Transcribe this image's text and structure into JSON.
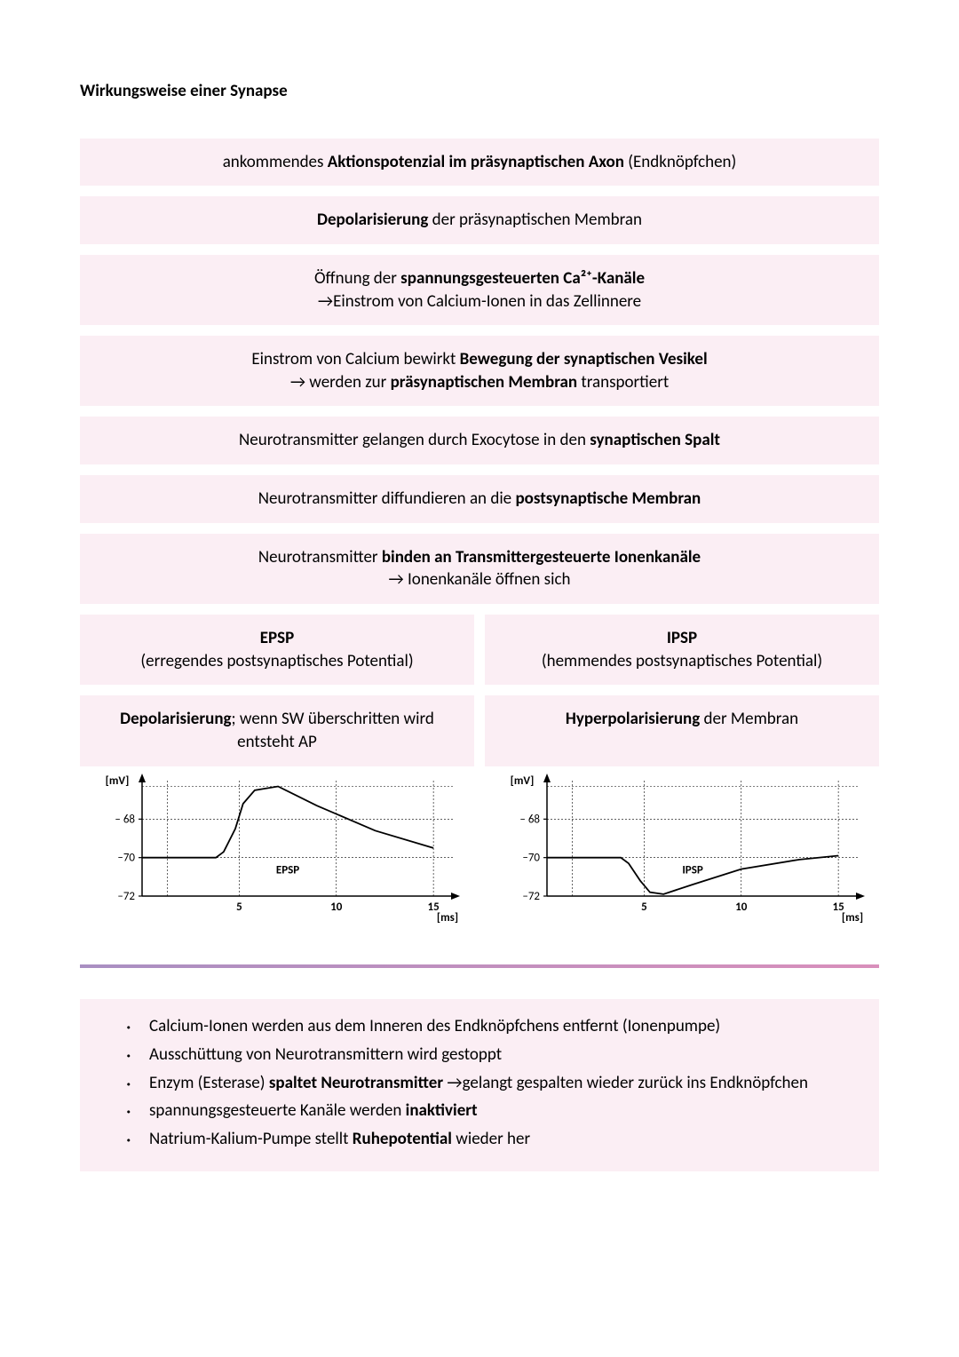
{
  "title": "Wirkungsweise einer Synapse",
  "boxes": {
    "b1_pre": "ankommendes ",
    "b1_bold": "Aktionspotenzial im präsynaptischen Axon",
    "b1_post": " (Endknöpfchen)",
    "b2_bold": "Depolarisierung",
    "b2_post": " der präsynaptischen Membran",
    "b3_l1_pre": "Öffnung der ",
    "b3_l1_bold": "spannungsgesteuerten Ca²⁺-Kanäle",
    "b3_l2": "→Einstrom von Calcium-Ionen in das Zellinnere",
    "b4_l1_pre": "Einstrom von Calcium bewirkt ",
    "b4_l1_bold": "Bewegung der synaptischen Vesikel",
    "b4_l2_pre": "→ werden zur ",
    "b4_l2_bold": "präsynaptischen Membran",
    "b4_l2_post": " transportiert",
    "b5_pre": "Neurotransmitter gelangen durch Exocytose in den ",
    "b5_bold": "synaptischen Spalt",
    "b6_pre": "Neurotransmitter diffundieren an die ",
    "b6_bold": "postsynaptische Membran",
    "b7_l1_pre": "Neurotransmitter ",
    "b7_l1_bold": "binden an Transmittergesteuerte Ionenkanäle",
    "b7_l2": "→ Ionenkanäle öffnen sich"
  },
  "split": {
    "left_h_bold": "EPSP",
    "left_h_sub": "(erregendes postsynaptisches Potential)",
    "right_h_bold": "IPSP",
    "right_h_sub": "(hemmendes postsynaptisches Potential)",
    "left2_bold": "Depolarisierung",
    "left2_post": "; wenn SW überschritten wird entsteht AP",
    "right2_bold": "Hyperpolarisierung",
    "right2_post": " der Membran"
  },
  "chart": {
    "y_label": "[mV]",
    "y_ticks": [
      "– 68",
      "–70",
      "–72"
    ],
    "y_tick_vals": [
      -68,
      -70,
      -72
    ],
    "ylim": [
      -72,
      -66
    ],
    "x_ticks": [
      "5",
      "10",
      "15"
    ],
    "x_tick_vals": [
      5,
      10,
      15
    ],
    "xlim": [
      0,
      16
    ],
    "x_label": "[ms]",
    "epsp_label": "EPSP",
    "ipsp_label": "IPSP",
    "epsp_points": [
      [
        0,
        -70
      ],
      [
        3.8,
        -70
      ],
      [
        4.2,
        -69.7
      ],
      [
        4.8,
        -68.5
      ],
      [
        5.2,
        -67.2
      ],
      [
        5.8,
        -66.5
      ],
      [
        7,
        -66.3
      ],
      [
        9,
        -67.3
      ],
      [
        12,
        -68.6
      ],
      [
        15,
        -69.5
      ]
    ],
    "ipsp_points": [
      [
        0,
        -70
      ],
      [
        3.8,
        -70
      ],
      [
        4.2,
        -70.3
      ],
      [
        4.8,
        -71.2
      ],
      [
        5.3,
        -71.8
      ],
      [
        6,
        -71.9
      ],
      [
        7.5,
        -71.4
      ],
      [
        10,
        -70.6
      ],
      [
        13,
        -70.1
      ],
      [
        15,
        -69.9
      ]
    ],
    "line_color": "#000000",
    "grid_color": "#000000",
    "grid_dash": "2,2",
    "axis_color": "#000000",
    "bg": "#ffffff",
    "font_size": 13
  },
  "bullets": {
    "i1": "Calcium-Ionen werden aus dem Inneren des Endknöpfchens entfernt (Ionenpumpe)",
    "i2": "Ausschüttung von Neurotransmittern wird gestoppt",
    "i3_pre": "Enzym (Esterase) ",
    "i3_bold": "spaltet Neurotransmitter",
    "i3_post": " →gelangt gespalten wieder zurück ins Endknöpfchen",
    "i4_pre": "spannungsgesteuerte Kanäle werden ",
    "i4_bold": "inaktiviert",
    "i5_pre": "Natrium-Kalium-Pumpe stellt ",
    "i5_bold": "Ruhepotential",
    "i5_post": " wieder her"
  }
}
